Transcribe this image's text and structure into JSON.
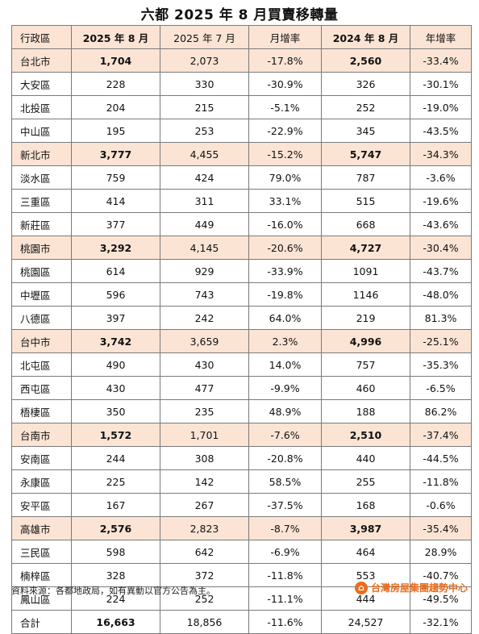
{
  "title": "六都 2025 年 8 月買賣移轉量",
  "headers": [
    "行政區",
    "2025 年 8 月",
    "2025 年 7 月",
    "月增率",
    "2024 年 8 月",
    "年增率"
  ],
  "rows": [
    {
      "type": "city",
      "cells": [
        "台北市",
        "1,704",
        "2,073",
        "-17.8%",
        "2,560",
        "-33.4%"
      ]
    },
    {
      "type": "district",
      "cells": [
        "大安區",
        "228",
        "330",
        "-30.9%",
        "326",
        "-30.1%"
      ]
    },
    {
      "type": "district",
      "cells": [
        "北投區",
        "204",
        "215",
        "-5.1%",
        "252",
        "-19.0%"
      ]
    },
    {
      "type": "district",
      "cells": [
        "中山區",
        "195",
        "253",
        "-22.9%",
        "345",
        "-43.5%"
      ]
    },
    {
      "type": "city",
      "cells": [
        "新北市",
        "3,777",
        "4,455",
        "-15.2%",
        "5,747",
        "-34.3%"
      ]
    },
    {
      "type": "district",
      "cells": [
        "淡水區",
        "759",
        "424",
        "79.0%",
        "787",
        "-3.6%"
      ]
    },
    {
      "type": "district",
      "cells": [
        "三重區",
        "414",
        "311",
        "33.1%",
        "515",
        "-19.6%"
      ]
    },
    {
      "type": "district",
      "cells": [
        "新莊區",
        "377",
        "449",
        "-16.0%",
        "668",
        "-43.6%"
      ]
    },
    {
      "type": "city",
      "cells": [
        "桃園市",
        "3,292",
        "4,145",
        "-20.6%",
        "4,727",
        "-30.4%"
      ]
    },
    {
      "type": "district",
      "cells": [
        "桃園區",
        "614",
        "929",
        "-33.9%",
        "1091",
        "-43.7%"
      ]
    },
    {
      "type": "district",
      "cells": [
        "中壢區",
        "596",
        "743",
        "-19.8%",
        "1146",
        "-48.0%"
      ]
    },
    {
      "type": "district",
      "cells": [
        "八德區",
        "397",
        "242",
        "64.0%",
        "219",
        "81.3%"
      ]
    },
    {
      "type": "city",
      "cells": [
        "台中市",
        "3,742",
        "3,659",
        "2.3%",
        "4,996",
        "-25.1%"
      ]
    },
    {
      "type": "district",
      "cells": [
        "北屯區",
        "490",
        "430",
        "14.0%",
        "757",
        "-35.3%"
      ]
    },
    {
      "type": "district",
      "cells": [
        "西屯區",
        "430",
        "477",
        "-9.9%",
        "460",
        "-6.5%"
      ]
    },
    {
      "type": "district",
      "cells": [
        "梧棲區",
        "350",
        "235",
        "48.9%",
        "188",
        "86.2%"
      ]
    },
    {
      "type": "city",
      "cells": [
        "台南市",
        "1,572",
        "1,701",
        "-7.6%",
        "2,510",
        "-37.4%"
      ]
    },
    {
      "type": "district",
      "cells": [
        "安南區",
        "244",
        "308",
        "-20.8%",
        "440",
        "-44.5%"
      ]
    },
    {
      "type": "district",
      "cells": [
        "永康區",
        "225",
        "142",
        "58.5%",
        "255",
        "-11.8%"
      ]
    },
    {
      "type": "district",
      "cells": [
        "安平區",
        "167",
        "267",
        "-37.5%",
        "168",
        "-0.6%"
      ]
    },
    {
      "type": "city",
      "cells": [
        "高雄市",
        "2,576",
        "2,823",
        "-8.7%",
        "3,987",
        "-35.4%"
      ]
    },
    {
      "type": "district",
      "cells": [
        "三民區",
        "598",
        "642",
        "-6.9%",
        "464",
        "28.9%"
      ]
    },
    {
      "type": "district",
      "cells": [
        "楠梓區",
        "328",
        "372",
        "-11.8%",
        "553",
        "-40.7%"
      ]
    },
    {
      "type": "district",
      "cells": [
        "鳳山區",
        "224",
        "252",
        "-11.1%",
        "444",
        "-49.5%"
      ]
    },
    {
      "type": "total",
      "cells": [
        "合計",
        "16,663",
        "18,856",
        "-11.6%",
        "24,527",
        "-32.1%"
      ]
    }
  ],
  "footer": {
    "source": "資料來源：各都地政局，如有異動以官方公告為主。",
    "brand": "台灣房屋集團趨勢中心",
    "brand_icon": "house-logo-icon",
    "brand_color": "#e86d1f"
  },
  "colors": {
    "highlight": "#fbe4d4",
    "border": "#7a7a7a"
  }
}
